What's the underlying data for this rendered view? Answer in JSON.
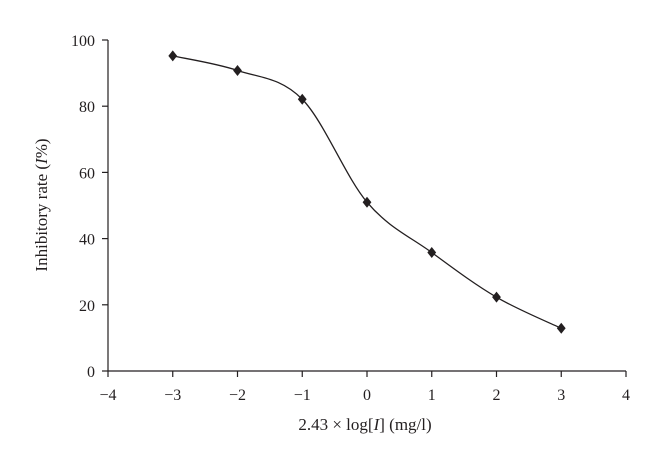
{
  "chart_data": {
    "type": "line",
    "title": "",
    "xlabel": "2.43 × log[I] (mg/l)",
    "ylabel": "Inhibitory rate (I%)",
    "xlim": [
      -4,
      4
    ],
    "ylim": [
      0,
      100
    ],
    "x_ticks": [
      "−4",
      "−3",
      "−2",
      "−1",
      "0",
      "1",
      "2",
      "3",
      "4"
    ],
    "y_ticks": [
      "0",
      "20",
      "40",
      "60",
      "80",
      "100"
    ],
    "grid": false,
    "legend": "none",
    "marker": "diamond",
    "line_color": "#231f20",
    "series": [
      {
        "x": [
          -3,
          -2,
          -1,
          0,
          1,
          2,
          3
        ],
        "values": [
          95.2,
          90.8,
          82.1,
          51.0,
          35.8,
          22.3,
          12.9
        ]
      }
    ]
  }
}
